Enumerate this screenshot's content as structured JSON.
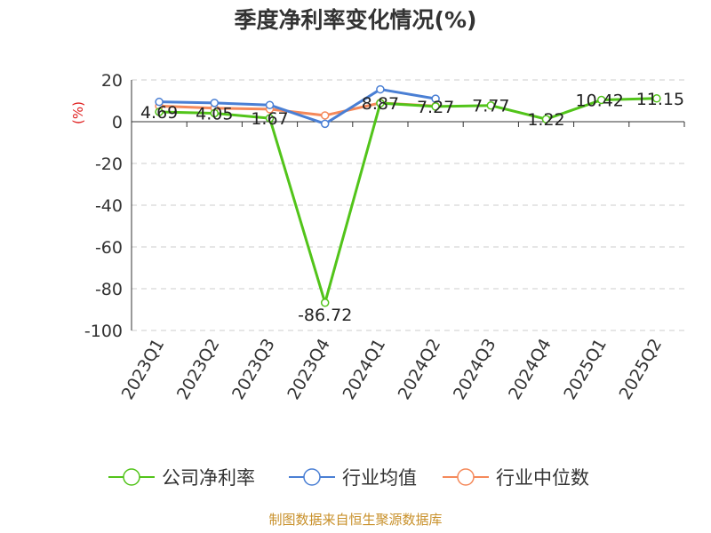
{
  "title": "季度净利率变化情况(%)",
  "source": "制图数据来自恒生聚源数据库",
  "chart_data": {
    "type": "line",
    "title": "季度净利率变化情况(%)",
    "ylabel": "(%)",
    "xlabel": "",
    "ylim": [
      -100,
      20
    ],
    "yticks": [
      20,
      0,
      -20,
      -40,
      -60,
      -80,
      -100
    ],
    "grid": true,
    "legend_position": "bottom",
    "categories": [
      "2023Q1",
      "2023Q2",
      "2023Q3",
      "2023Q4",
      "2024Q1",
      "2024Q2",
      "2024Q3",
      "2024Q4",
      "2025Q1",
      "2025Q2"
    ],
    "series": [
      {
        "name": "公司净利率",
        "color": "#52c41a",
        "values": [
          4.69,
          4.05,
          1.67,
          -86.72,
          8.87,
          7.27,
          7.77,
          1.22,
          10.42,
          11.15
        ],
        "labels": [
          "4.69",
          "4.05",
          "1.67",
          "-86.72",
          "8.87",
          "7.27",
          "7.77",
          "1.22",
          "10.42",
          "11.15"
        ]
      },
      {
        "name": "行业均值",
        "color": "#4a7fd4",
        "values": [
          9.5,
          9.0,
          8.0,
          -1.0,
          15.5,
          11.0,
          null,
          null,
          null,
          null
        ]
      },
      {
        "name": "行业中位数",
        "color": "#f5895a",
        "values": [
          7.5,
          6.5,
          6.0,
          3.0,
          9.0,
          7.5,
          null,
          null,
          null,
          null
        ]
      }
    ]
  }
}
